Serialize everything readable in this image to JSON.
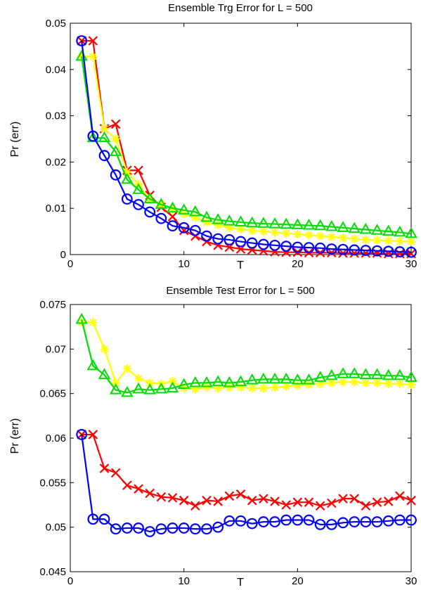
{
  "chart_data": [
    {
      "type": "line",
      "title": "Ensemble Trg Error for L = 500",
      "xlabel": "T",
      "ylabel": "Pr (err)",
      "xlim": [
        0,
        30
      ],
      "ylim": [
        0,
        0.05
      ],
      "xticks": [
        0,
        10,
        20,
        30
      ],
      "yticks": [
        0,
        0.01,
        0.02,
        0.03,
        0.04,
        0.05
      ],
      "ytick_labels": [
        "0",
        "0.01",
        "0.02",
        "0.03",
        "0.04",
        "0.05"
      ],
      "xtick_labels": [
        "0",
        "10",
        "20",
        "30"
      ],
      "grid": false,
      "x": [
        1,
        2,
        3,
        4,
        5,
        6,
        7,
        8,
        9,
        10,
        11,
        12,
        13,
        14,
        15,
        16,
        17,
        18,
        19,
        20,
        21,
        22,
        23,
        24,
        25,
        26,
        27,
        28,
        29,
        30
      ],
      "series": [
        {
          "color": "#ff0000",
          "marker": "x",
          "values": [
            0.0462,
            0.0462,
            0.0272,
            0.0282,
            0.0182,
            0.0182,
            0.0128,
            0.0102,
            0.0082,
            0.0052,
            0.004,
            0.0028,
            0.002,
            0.0016,
            0.0012,
            0.001,
            0.0008,
            0.0006,
            0.0005,
            0.0005,
            0.0004,
            0.0004,
            0.0004,
            0.0003,
            0.0003,
            0.0003,
            0.0003,
            0.0002,
            0.0002,
            0.0002
          ]
        },
        {
          "color": "#ffff00",
          "marker": "star",
          "values": [
            0.0428,
            0.0428,
            0.0272,
            0.025,
            0.0178,
            0.0152,
            0.0118,
            0.0108,
            0.0098,
            0.0088,
            0.008,
            0.007,
            0.0064,
            0.0058,
            0.0055,
            0.0052,
            0.005,
            0.0048,
            0.0046,
            0.0044,
            0.0042,
            0.004,
            0.0038,
            0.0036,
            0.0034,
            0.0032,
            0.0031,
            0.003,
            0.0029,
            0.0028
          ]
        },
        {
          "color": "#00dd00",
          "marker": "triangle",
          "values": [
            0.0428,
            0.0252,
            0.0252,
            0.0222,
            0.0162,
            0.014,
            0.012,
            0.0108,
            0.01,
            0.0096,
            0.0092,
            0.008,
            0.0075,
            0.0072,
            0.007,
            0.0068,
            0.0067,
            0.0066,
            0.0065,
            0.0064,
            0.0063,
            0.0062,
            0.006,
            0.0058,
            0.0056,
            0.0054,
            0.0052,
            0.005,
            0.0048,
            0.0045
          ]
        },
        {
          "color": "#0000ff",
          "marker": "circle",
          "values": [
            0.0462,
            0.0256,
            0.0214,
            0.0172,
            0.012,
            0.0108,
            0.0092,
            0.0078,
            0.0062,
            0.0058,
            0.0052,
            0.004,
            0.0034,
            0.0032,
            0.0028,
            0.0025,
            0.0022,
            0.002,
            0.0018,
            0.0016,
            0.0015,
            0.0014,
            0.0012,
            0.0011,
            0.001,
            0.0009,
            0.0008,
            0.0007,
            0.0006,
            0.0005
          ]
        }
      ]
    },
    {
      "type": "line",
      "title": "Ensemble Test Error for L = 500",
      "xlabel": "T",
      "ylabel": "Pr (err)",
      "xlim": [
        0,
        30
      ],
      "ylim": [
        0.045,
        0.075
      ],
      "xticks": [
        0,
        10,
        20,
        30
      ],
      "yticks": [
        0.045,
        0.05,
        0.055,
        0.06,
        0.065,
        0.07,
        0.075
      ],
      "ytick_labels": [
        "0.045",
        "0.05",
        "0.055",
        "0.06",
        "0.065",
        "0.07",
        "0.075"
      ],
      "xtick_labels": [
        "0",
        "10",
        "20",
        "30"
      ],
      "grid": false,
      "x": [
        1,
        2,
        3,
        4,
        5,
        6,
        7,
        8,
        9,
        10,
        11,
        12,
        13,
        14,
        15,
        16,
        17,
        18,
        19,
        20,
        21,
        22,
        23,
        24,
        25,
        26,
        27,
        28,
        29,
        30
      ],
      "series": [
        {
          "color": "#ffff00",
          "marker": "star",
          "values": [
            0.073,
            0.073,
            0.07,
            0.0662,
            0.0678,
            0.0667,
            0.0662,
            0.0661,
            0.0664,
            0.0656,
            0.0655,
            0.0657,
            0.0656,
            0.0657,
            0.0657,
            0.0656,
            0.0656,
            0.0657,
            0.0658,
            0.0659,
            0.066,
            0.0661,
            0.0662,
            0.0663,
            0.0663,
            0.0662,
            0.0662,
            0.0661,
            0.0661,
            0.066
          ]
        },
        {
          "color": "#00dd00",
          "marker": "triangle",
          "values": [
            0.0733,
            0.0681,
            0.0671,
            0.0654,
            0.0651,
            0.0655,
            0.0654,
            0.0655,
            0.0656,
            0.066,
            0.0662,
            0.0662,
            0.0663,
            0.0662,
            0.0663,
            0.0665,
            0.0666,
            0.0666,
            0.0666,
            0.0665,
            0.0665,
            0.0668,
            0.067,
            0.0672,
            0.0672,
            0.0671,
            0.0671,
            0.067,
            0.067,
            0.0668
          ]
        },
        {
          "color": "#ff0000",
          "marker": "x",
          "values": [
            0.0604,
            0.0604,
            0.0566,
            0.0561,
            0.0547,
            0.0543,
            0.0538,
            0.0534,
            0.0533,
            0.053,
            0.0524,
            0.053,
            0.0529,
            0.0535,
            0.0537,
            0.053,
            0.0532,
            0.0529,
            0.0525,
            0.0528,
            0.0528,
            0.0524,
            0.0527,
            0.0532,
            0.0532,
            0.0524,
            0.0528,
            0.0529,
            0.0535,
            0.053
          ]
        },
        {
          "color": "#0000ff",
          "marker": "circle",
          "values": [
            0.0604,
            0.0509,
            0.0509,
            0.0498,
            0.0499,
            0.0499,
            0.0495,
            0.0498,
            0.0499,
            0.0499,
            0.0498,
            0.0498,
            0.05,
            0.0507,
            0.0507,
            0.0504,
            0.0506,
            0.0506,
            0.0508,
            0.0508,
            0.0508,
            0.0503,
            0.0503,
            0.0505,
            0.0506,
            0.0506,
            0.0506,
            0.0507,
            0.0508,
            0.0508
          ]
        }
      ]
    }
  ]
}
